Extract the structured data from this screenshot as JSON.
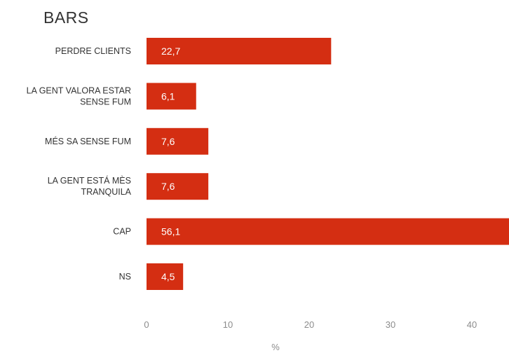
{
  "title": "BARS",
  "colors": {
    "bar": "#d42e12",
    "bar_label": "#ffffff",
    "category_label": "#333333",
    "tick_label": "#8c8c8c",
    "axis_title": "#8c8c8c"
  },
  "chart_data": {
    "type": "bar",
    "orientation": "horizontal",
    "title": "BARS",
    "xlabel": "%",
    "ylabel": "",
    "grid": false,
    "legend": "none",
    "categories": [
      [
        "PERDRE CLIENTS"
      ],
      [
        "LA GENT VALORA ESTAR",
        "SENSE FUM"
      ],
      [
        "MÉS SA SENSE FUM"
      ],
      [
        "LA GENT ESTÁ MÈS",
        "TRANQUILA"
      ],
      [
        "CAP"
      ],
      [
        "NS"
      ]
    ],
    "values": [
      22.7,
      6.1,
      7.6,
      7.6,
      56.1,
      4.5
    ],
    "value_labels": [
      "22,7",
      "6,1",
      "7,6",
      "7,6",
      "56,1",
      "4,5"
    ],
    "xlim": [
      0,
      44
    ],
    "xticks": [
      0,
      10,
      20,
      30,
      40
    ]
  }
}
